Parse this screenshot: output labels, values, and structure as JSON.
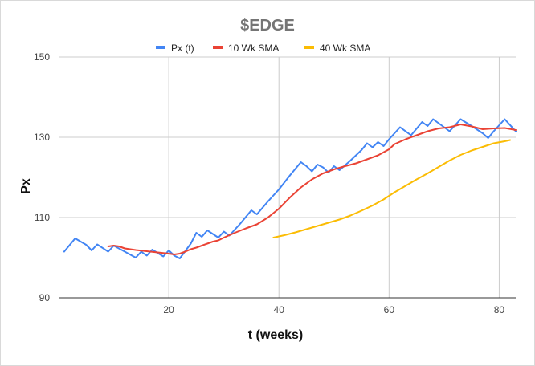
{
  "chart_data": {
    "type": "line",
    "title": "$EDGE",
    "xlabel": "t (weeks)",
    "ylabel": "Px",
    "xlim": [
      0,
      83
    ],
    "ylim": [
      90,
      150
    ],
    "x_ticks": [
      20,
      40,
      60,
      80
    ],
    "y_ticks": [
      90,
      110,
      130,
      150
    ],
    "x_tick_labels": [
      "20",
      "40",
      "60",
      "80"
    ],
    "y_tick_labels": [
      "90",
      "110",
      "130",
      "150"
    ],
    "grid": true,
    "legend_position": "top",
    "series": [
      {
        "name": "Px (t)",
        "color": "#4285f4",
        "points": [
          [
            1,
            101.5
          ],
          [
            3,
            104.8
          ],
          [
            5,
            103.2
          ],
          [
            6,
            101.8
          ],
          [
            7,
            103.3
          ],
          [
            9,
            101.5
          ],
          [
            10,
            103.0
          ],
          [
            12,
            101.5
          ],
          [
            14,
            100.0
          ],
          [
            15,
            101.5
          ],
          [
            16,
            100.5
          ],
          [
            17,
            102.0
          ],
          [
            19,
            100.3
          ],
          [
            20,
            101.8
          ],
          [
            21,
            100.5
          ],
          [
            22,
            99.8
          ],
          [
            24,
            103.5
          ],
          [
            25,
            106.2
          ],
          [
            26,
            105.2
          ],
          [
            27,
            106.8
          ],
          [
            29,
            105.0
          ],
          [
            30,
            106.5
          ],
          [
            31,
            105.5
          ],
          [
            33,
            108.5
          ],
          [
            35,
            111.8
          ],
          [
            36,
            110.8
          ],
          [
            38,
            114.0
          ],
          [
            40,
            117.0
          ],
          [
            42,
            120.5
          ],
          [
            44,
            123.8
          ],
          [
            45,
            122.8
          ],
          [
            46,
            121.5
          ],
          [
            47,
            123.2
          ],
          [
            48,
            122.5
          ],
          [
            49,
            121.2
          ],
          [
            50,
            122.8
          ],
          [
            51,
            121.8
          ],
          [
            53,
            124.2
          ],
          [
            55,
            126.8
          ],
          [
            56,
            128.5
          ],
          [
            57,
            127.5
          ],
          [
            58,
            128.8
          ],
          [
            59,
            127.8
          ],
          [
            60,
            129.5
          ],
          [
            62,
            132.5
          ],
          [
            64,
            130.5
          ],
          [
            66,
            133.8
          ],
          [
            67,
            132.8
          ],
          [
            68,
            134.5
          ],
          [
            69,
            133.5
          ],
          [
            71,
            131.5
          ],
          [
            73,
            134.5
          ],
          [
            75,
            132.8
          ],
          [
            77,
            131.0
          ],
          [
            78,
            129.8
          ],
          [
            79,
            131.5
          ],
          [
            81,
            134.5
          ],
          [
            83,
            131.5
          ]
        ]
      },
      {
        "name": "10 Wk SMA",
        "color": "#ea4335",
        "points": [
          [
            9,
            102.8
          ],
          [
            10,
            103.0
          ],
          [
            11,
            102.8
          ],
          [
            12,
            102.3
          ],
          [
            14,
            101.9
          ],
          [
            16,
            101.6
          ],
          [
            18,
            101.3
          ],
          [
            20,
            101.0
          ],
          [
            21,
            100.8
          ],
          [
            22,
            101.0
          ],
          [
            23,
            101.5
          ],
          [
            24,
            102.1
          ],
          [
            25,
            102.5
          ],
          [
            26,
            103.0
          ],
          [
            27,
            103.5
          ],
          [
            28,
            104.0
          ],
          [
            29,
            104.3
          ],
          [
            30,
            105.0
          ],
          [
            32,
            106.2
          ],
          [
            34,
            107.3
          ],
          [
            36,
            108.3
          ],
          [
            38,
            110.0
          ],
          [
            40,
            112.2
          ],
          [
            42,
            115.0
          ],
          [
            44,
            117.5
          ],
          [
            46,
            119.5
          ],
          [
            48,
            121.0
          ],
          [
            50,
            122.0
          ],
          [
            52,
            122.8
          ],
          [
            54,
            123.5
          ],
          [
            56,
            124.5
          ],
          [
            58,
            125.5
          ],
          [
            60,
            127.0
          ],
          [
            61,
            128.3
          ],
          [
            63,
            129.5
          ],
          [
            65,
            130.5
          ],
          [
            67,
            131.5
          ],
          [
            69,
            132.2
          ],
          [
            71,
            132.5
          ],
          [
            73,
            133.2
          ],
          [
            75,
            132.7
          ],
          [
            77,
            132.0
          ],
          [
            79,
            132.2
          ],
          [
            81,
            132.3
          ],
          [
            83,
            131.8
          ]
        ]
      },
      {
        "name": "40 Wk SMA",
        "color": "#fbbc04",
        "points": [
          [
            39,
            105.0
          ],
          [
            41,
            105.6
          ],
          [
            43,
            106.3
          ],
          [
            45,
            107.1
          ],
          [
            47,
            107.9
          ],
          [
            49,
            108.7
          ],
          [
            51,
            109.5
          ],
          [
            53,
            110.5
          ],
          [
            55,
            111.7
          ],
          [
            57,
            113.0
          ],
          [
            59,
            114.5
          ],
          [
            61,
            116.3
          ],
          [
            63,
            117.9
          ],
          [
            65,
            119.5
          ],
          [
            67,
            121.0
          ],
          [
            69,
            122.6
          ],
          [
            71,
            124.2
          ],
          [
            73,
            125.6
          ],
          [
            75,
            126.7
          ],
          [
            77,
            127.6
          ],
          [
            79,
            128.5
          ],
          [
            81,
            129.0
          ],
          [
            82,
            129.3
          ]
        ]
      }
    ]
  }
}
